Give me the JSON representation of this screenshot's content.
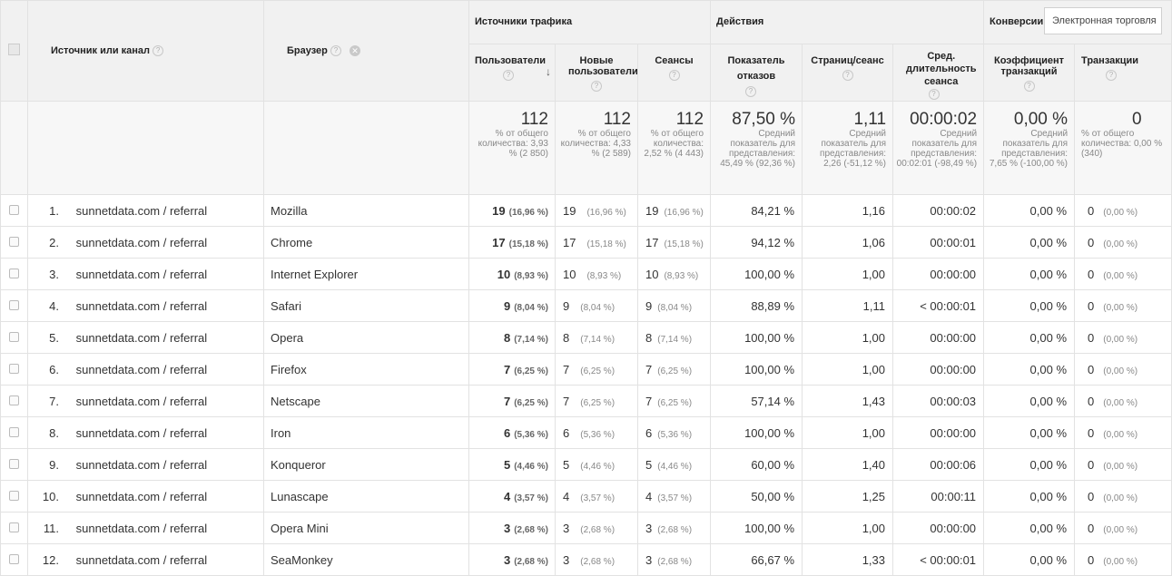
{
  "headers": {
    "source": "Источник или канал",
    "browser": "Браузер",
    "group_traffic": "Источники трафика",
    "group_actions": "Действия",
    "group_conversions": "Конверсии",
    "conversion_select": "Электронная торговля",
    "users": "Пользователи",
    "new_users": "Новые пользователи",
    "sessions": "Сеансы",
    "bounce": "Показатель отказов",
    "pages": "Страниц/сеанс",
    "duration": "Сред. длительность сеанса",
    "conv_rate": "Коэффициент транзакций",
    "transactions": "Транзакции"
  },
  "totals": {
    "users": {
      "value": "112",
      "note": "% от общего количества: 3,93 % (2 850)"
    },
    "new_users": {
      "value": "112",
      "note": "% от общего количества: 4,33 % (2 589)"
    },
    "sessions": {
      "value": "112",
      "note": "% от общего количества: 2,52 % (4 443)"
    },
    "bounce": {
      "value": "87,50 %",
      "note": "Средний показатель для представления: 45,49 % (92,36 %)"
    },
    "pages": {
      "value": "1,11",
      "note": "Средний показатель для представления: 2,26 (-51,12 %)"
    },
    "duration": {
      "value": "00:00:02",
      "note": "Средний показатель для представления: 00:02:01 (-98,49 %)"
    },
    "conv_rate": {
      "value": "0,00 %",
      "note": "Средний показатель для представления: 7,65 % (-100,00 %)"
    },
    "transactions": {
      "value": "0",
      "note": "% от общего количества: 0,00 % (340)"
    }
  },
  "rows": [
    {
      "num": "1.",
      "source": "sunnetdata.com / referral",
      "browser": "Mozilla",
      "users": "19",
      "users_pct": "(16,96 %)",
      "new_users": "19",
      "new_users_pct": "(16,96 %)",
      "sessions": "19",
      "sessions_pct": "(16,96 %)",
      "bounce": "84,21 %",
      "pages": "1,16",
      "duration": "00:00:02",
      "conv_rate": "0,00 %",
      "transactions": "0",
      "transactions_pct": "(0,00 %)"
    },
    {
      "num": "2.",
      "source": "sunnetdata.com / referral",
      "browser": "Chrome",
      "users": "17",
      "users_pct": "(15,18 %)",
      "new_users": "17",
      "new_users_pct": "(15,18 %)",
      "sessions": "17",
      "sessions_pct": "(15,18 %)",
      "bounce": "94,12 %",
      "pages": "1,06",
      "duration": "00:00:01",
      "conv_rate": "0,00 %",
      "transactions": "0",
      "transactions_pct": "(0,00 %)"
    },
    {
      "num": "3.",
      "source": "sunnetdata.com / referral",
      "browser": "Internet Explorer",
      "users": "10",
      "users_pct": "(8,93 %)",
      "new_users": "10",
      "new_users_pct": "(8,93 %)",
      "sessions": "10",
      "sessions_pct": "(8,93 %)",
      "bounce": "100,00 %",
      "pages": "1,00",
      "duration": "00:00:00",
      "conv_rate": "0,00 %",
      "transactions": "0",
      "transactions_pct": "(0,00 %)"
    },
    {
      "num": "4.",
      "source": "sunnetdata.com / referral",
      "browser": "Safari",
      "users": "9",
      "users_pct": "(8,04 %)",
      "new_users": "9",
      "new_users_pct": "(8,04 %)",
      "sessions": "9",
      "sessions_pct": "(8,04 %)",
      "bounce": "88,89 %",
      "pages": "1,11",
      "duration": "< 00:00:01",
      "conv_rate": "0,00 %",
      "transactions": "0",
      "transactions_pct": "(0,00 %)"
    },
    {
      "num": "5.",
      "source": "sunnetdata.com / referral",
      "browser": "Opera",
      "users": "8",
      "users_pct": "(7,14 %)",
      "new_users": "8",
      "new_users_pct": "(7,14 %)",
      "sessions": "8",
      "sessions_pct": "(7,14 %)",
      "bounce": "100,00 %",
      "pages": "1,00",
      "duration": "00:00:00",
      "conv_rate": "0,00 %",
      "transactions": "0",
      "transactions_pct": "(0,00 %)"
    },
    {
      "num": "6.",
      "source": "sunnetdata.com / referral",
      "browser": "Firefox",
      "users": "7",
      "users_pct": "(6,25 %)",
      "new_users": "7",
      "new_users_pct": "(6,25 %)",
      "sessions": "7",
      "sessions_pct": "(6,25 %)",
      "bounce": "100,00 %",
      "pages": "1,00",
      "duration": "00:00:00",
      "conv_rate": "0,00 %",
      "transactions": "0",
      "transactions_pct": "(0,00 %)"
    },
    {
      "num": "7.",
      "source": "sunnetdata.com / referral",
      "browser": "Netscape",
      "users": "7",
      "users_pct": "(6,25 %)",
      "new_users": "7",
      "new_users_pct": "(6,25 %)",
      "sessions": "7",
      "sessions_pct": "(6,25 %)",
      "bounce": "57,14 %",
      "pages": "1,43",
      "duration": "00:00:03",
      "conv_rate": "0,00 %",
      "transactions": "0",
      "transactions_pct": "(0,00 %)"
    },
    {
      "num": "8.",
      "source": "sunnetdata.com / referral",
      "browser": "Iron",
      "users": "6",
      "users_pct": "(5,36 %)",
      "new_users": "6",
      "new_users_pct": "(5,36 %)",
      "sessions": "6",
      "sessions_pct": "(5,36 %)",
      "bounce": "100,00 %",
      "pages": "1,00",
      "duration": "00:00:00",
      "conv_rate": "0,00 %",
      "transactions": "0",
      "transactions_pct": "(0,00 %)"
    },
    {
      "num": "9.",
      "source": "sunnetdata.com / referral",
      "browser": "Konqueror",
      "users": "5",
      "users_pct": "(4,46 %)",
      "new_users": "5",
      "new_users_pct": "(4,46 %)",
      "sessions": "5",
      "sessions_pct": "(4,46 %)",
      "bounce": "60,00 %",
      "pages": "1,40",
      "duration": "00:00:06",
      "conv_rate": "0,00 %",
      "transactions": "0",
      "transactions_pct": "(0,00 %)"
    },
    {
      "num": "10.",
      "source": "sunnetdata.com / referral",
      "browser": "Lunascape",
      "users": "4",
      "users_pct": "(3,57 %)",
      "new_users": "4",
      "new_users_pct": "(3,57 %)",
      "sessions": "4",
      "sessions_pct": "(3,57 %)",
      "bounce": "50,00 %",
      "pages": "1,25",
      "duration": "00:00:11",
      "conv_rate": "0,00 %",
      "transactions": "0",
      "transactions_pct": "(0,00 %)"
    },
    {
      "num": "11.",
      "source": "sunnetdata.com / referral",
      "browser": "Opera Mini",
      "users": "3",
      "users_pct": "(2,68 %)",
      "new_users": "3",
      "new_users_pct": "(2,68 %)",
      "sessions": "3",
      "sessions_pct": "(2,68 %)",
      "bounce": "100,00 %",
      "pages": "1,00",
      "duration": "00:00:00",
      "conv_rate": "0,00 %",
      "transactions": "0",
      "transactions_pct": "(0,00 %)"
    },
    {
      "num": "12.",
      "source": "sunnetdata.com / referral",
      "browser": "SeaMonkey",
      "users": "3",
      "users_pct": "(2,68 %)",
      "new_users": "3",
      "new_users_pct": "(2,68 %)",
      "sessions": "3",
      "sessions_pct": "(2,68 %)",
      "bounce": "66,67 %",
      "pages": "1,33",
      "duration": "< 00:00:01",
      "conv_rate": "0,00 %",
      "transactions": "0",
      "transactions_pct": "(0,00 %)"
    }
  ]
}
